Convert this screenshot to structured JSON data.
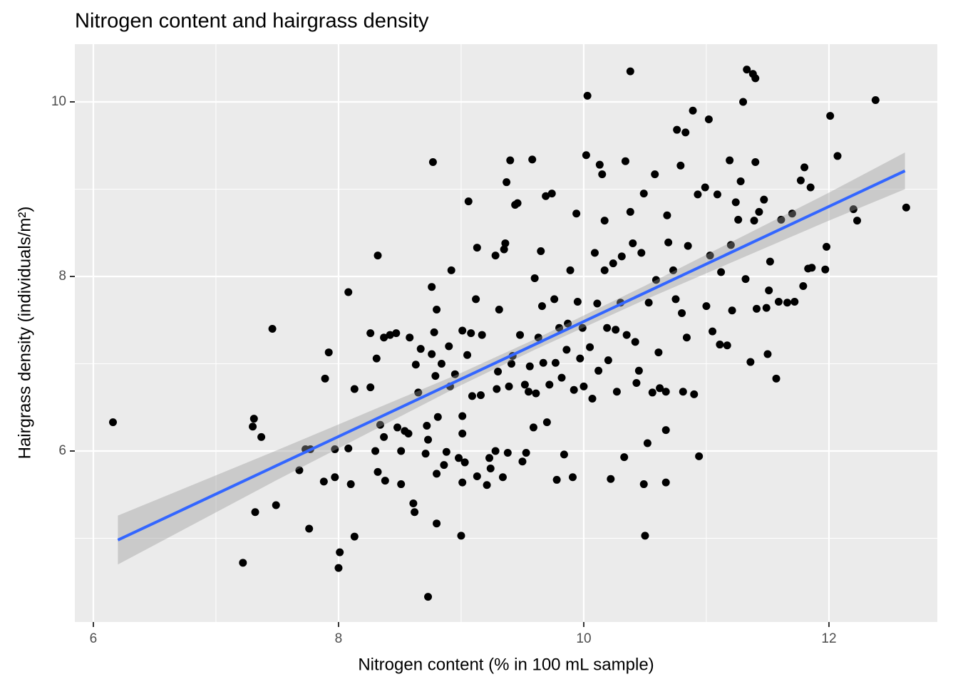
{
  "chart_data": {
    "type": "scatter",
    "title": "Nitrogen content and hairgrass density",
    "x_label": "Nitrogen content (% in 100 mL sample)",
    "y_label": "Hairgrass density (individuals/m²)",
    "xlim": [
      5.849,
      12.884
    ],
    "ylim": [
      4.041,
      10.661
    ],
    "xticks": [
      6,
      8,
      10,
      12
    ],
    "yticks": [
      6,
      8,
      10
    ],
    "grid": true,
    "point_color": "#000000",
    "x": [
      6.16,
      7.22,
      7.31,
      7.3,
      7.37,
      7.32,
      7.49,
      7.46,
      7.68,
      7.73,
      7.77,
      7.76,
      7.89,
      7.88,
      7.92,
      7.97,
      7.97,
      8.01,
      8.0,
      8.08,
      8.08,
      8.1,
      8.13,
      8.13,
      8.26,
      8.26,
      8.32,
      8.31,
      8.3,
      8.32,
      8.34,
      8.37,
      8.37,
      8.38,
      8.42,
      8.47,
      8.48,
      8.51,
      8.51,
      8.54,
      8.57,
      8.58,
      8.61,
      8.62,
      8.63,
      8.65,
      8.67,
      8.73,
      8.72,
      8.71,
      8.73,
      8.76,
      8.76,
      8.77,
      8.78,
      8.79,
      8.8,
      8.8,
      8.8,
      8.81,
      8.84,
      8.86,
      8.88,
      8.9,
      8.91,
      8.92,
      8.95,
      8.98,
      9.0,
      9.01,
      9.01,
      9.01,
      9.01,
      9.03,
      9.05,
      9.06,
      9.08,
      9.09,
      9.12,
      9.13,
      9.13,
      9.16,
      9.17,
      9.21,
      9.23,
      9.24,
      9.28,
      9.28,
      9.29,
      9.3,
      9.31,
      9.34,
      9.35,
      9.36,
      9.37,
      9.38,
      9.39,
      9.4,
      9.41,
      9.42,
      9.44,
      9.46,
      9.48,
      9.5,
      9.52,
      9.53,
      9.55,
      9.56,
      9.58,
      9.59,
      9.6,
      9.61,
      9.63,
      9.65,
      9.66,
      9.67,
      9.69,
      9.7,
      9.72,
      9.74,
      9.76,
      9.77,
      9.78,
      9.8,
      9.82,
      9.84,
      9.86,
      9.87,
      9.89,
      9.91,
      9.92,
      9.94,
      9.95,
      9.97,
      9.99,
      10.0,
      10.02,
      10.03,
      10.05,
      10.07,
      10.09,
      10.11,
      10.12,
      10.13,
      10.15,
      10.17,
      10.17,
      10.19,
      10.2,
      10.22,
      10.24,
      10.26,
      10.27,
      10.3,
      10.31,
      10.33,
      10.34,
      10.35,
      10.38,
      10.38,
      10.4,
      10.42,
      10.43,
      10.45,
      10.47,
      10.49,
      10.49,
      10.5,
      10.52,
      10.53,
      10.56,
      10.58,
      10.59,
      10.61,
      10.62,
      10.67,
      10.67,
      10.67,
      10.68,
      10.69,
      10.73,
      10.75,
      10.76,
      10.79,
      10.8,
      10.81,
      10.83,
      10.84,
      10.85,
      10.89,
      10.9,
      10.93,
      10.94,
      10.99,
      11.0,
      11.02,
      11.03,
      11.05,
      11.09,
      11.11,
      11.12,
      11.17,
      11.19,
      11.2,
      11.21,
      11.24,
      11.26,
      11.28,
      11.3,
      11.32,
      11.33,
      11.36,
      11.38,
      11.4,
      11.39,
      11.4,
      11.41,
      11.43,
      11.47,
      11.49,
      11.5,
      11.51,
      11.52,
      11.57,
      11.59,
      11.61,
      11.66,
      11.7,
      11.72,
      11.77,
      11.79,
      11.8,
      11.83,
      11.85,
      11.86,
      11.97,
      11.98,
      12.01,
      12.07,
      12.2,
      12.23,
      12.38,
      12.63
    ],
    "y": [
      6.33,
      4.72,
      6.37,
      6.28,
      6.16,
      5.3,
      5.38,
      7.4,
      5.78,
      6.02,
      6.02,
      5.11,
      6.83,
      5.65,
      7.13,
      6.02,
      5.7,
      4.84,
      4.66,
      7.82,
      6.03,
      5.62,
      6.71,
      5.02,
      6.73,
      7.35,
      8.24,
      7.06,
      6.0,
      5.76,
      6.3,
      7.3,
      6.16,
      5.66,
      7.33,
      7.35,
      6.27,
      6.0,
      5.62,
      6.23,
      6.2,
      7.3,
      5.4,
      5.3,
      6.99,
      6.67,
      7.17,
      4.33,
      6.29,
      5.97,
      6.13,
      7.11,
      7.88,
      9.31,
      7.36,
      6.86,
      7.62,
      5.74,
      5.17,
      6.39,
      7.0,
      5.84,
      5.99,
      7.2,
      6.74,
      8.07,
      6.88,
      5.92,
      5.03,
      7.38,
      6.4,
      6.2,
      5.64,
      5.87,
      7.1,
      8.86,
      7.35,
      6.63,
      7.74,
      8.33,
      5.71,
      6.64,
      7.33,
      5.61,
      5.92,
      5.8,
      8.24,
      6.0,
      6.71,
      6.91,
      7.62,
      5.7,
      8.31,
      8.38,
      9.08,
      5.98,
      6.74,
      9.33,
      7.0,
      7.09,
      8.82,
      8.84,
      7.33,
      5.88,
      6.76,
      5.98,
      6.68,
      6.97,
      9.34,
      6.27,
      7.98,
      6.66,
      7.3,
      8.29,
      7.66,
      7.01,
      8.92,
      6.33,
      6.76,
      8.95,
      7.74,
      7.01,
      5.67,
      7.41,
      6.84,
      5.96,
      7.16,
      7.46,
      8.07,
      5.7,
      6.7,
      8.72,
      7.71,
      7.06,
      7.41,
      6.74,
      9.39,
      10.07,
      7.19,
      6.6,
      8.27,
      7.69,
      6.92,
      9.28,
      9.17,
      8.64,
      8.07,
      7.41,
      7.04,
      5.68,
      8.15,
      7.39,
      6.68,
      7.7,
      8.23,
      5.93,
      9.32,
      7.33,
      10.35,
      8.74,
      8.38,
      7.25,
      6.78,
      6.92,
      8.27,
      8.95,
      5.62,
      5.03,
      6.09,
      7.7,
      6.67,
      9.17,
      7.96,
      7.13,
      6.72,
      6.68,
      6.24,
      5.64,
      8.7,
      8.39,
      8.07,
      7.74,
      9.68,
      9.27,
      7.58,
      6.68,
      9.65,
      7.3,
      8.35,
      9.9,
      6.65,
      8.94,
      5.94,
      9.02,
      7.66,
      9.8,
      8.24,
      7.37,
      8.94,
      7.22,
      8.05,
      7.21,
      9.33,
      8.36,
      7.61,
      8.85,
      8.65,
      9.09,
      10.0,
      7.97,
      10.37,
      7.02,
      10.32,
      10.27,
      8.64,
      9.31,
      7.63,
      8.74,
      8.88,
      7.64,
      7.11,
      7.84,
      8.17,
      6.83,
      7.71,
      8.65,
      7.7,
      8.72,
      7.71,
      9.1,
      7.89,
      9.25,
      8.09,
      9.02,
      8.1,
      8.08,
      8.34,
      9.84,
      9.38,
      8.77,
      8.64,
      10.02,
      8.79
    ],
    "line": {
      "color": "#3366FF",
      "x": [
        6.2,
        12.62
      ],
      "y": [
        4.98,
        9.21
      ]
    },
    "band": {
      "color": "#999999",
      "x": [
        6.2,
        7.5,
        9,
        9.6,
        10.5,
        12,
        12.62
      ],
      "lower": [
        4.7,
        5.67,
        6.755,
        7.16,
        7.734,
        8.64,
        9.0
      ],
      "upper": [
        5.26,
        6.01,
        6.895,
        7.28,
        7.894,
        8.96,
        9.42
      ]
    }
  }
}
